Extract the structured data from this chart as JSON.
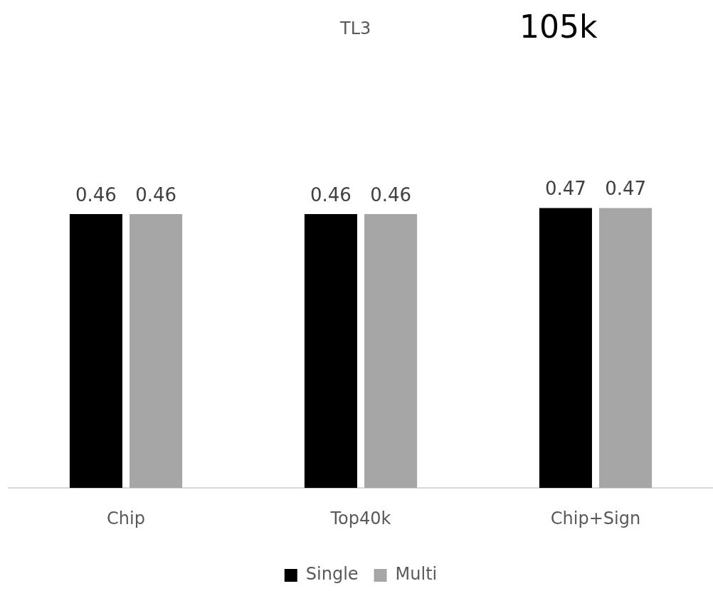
{
  "chart_data": {
    "type": "bar",
    "title": "TL3",
    "subtitle": "105k",
    "categories": [
      "Chip",
      "Top40k",
      "Chip+Sign"
    ],
    "series": [
      {
        "name": "Single",
        "color": "#000000",
        "values": [
          0.46,
          0.46,
          0.47
        ]
      },
      {
        "name": "Multi",
        "color": "#a6a6a6",
        "values": [
          0.46,
          0.46,
          0.47
        ]
      }
    ],
    "tick_labels": "x",
    "legend": "bottom",
    "data_labels": true
  }
}
